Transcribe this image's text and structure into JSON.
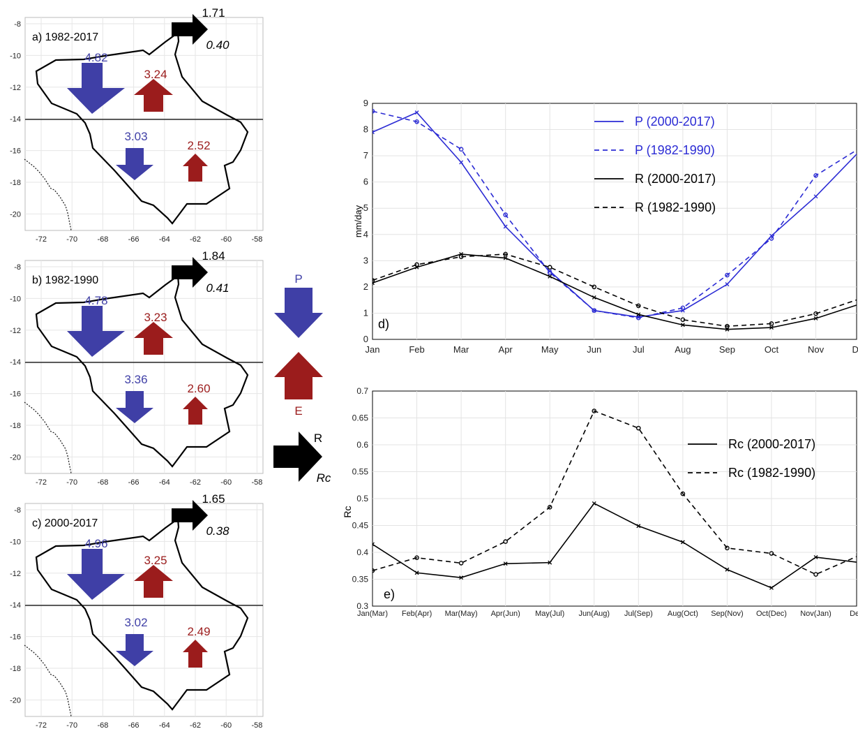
{
  "colors": {
    "p": "#3f3fa6",
    "e": "#9b1c1c",
    "r": "#000000",
    "p_line": "#2b2bd4",
    "r_line": "#000000",
    "grid": "#e3e3e3",
    "basin": "#000000"
  },
  "map_panels": [
    {
      "label": "a) 1982-2017",
      "r": "1.71",
      "rc": "0.40",
      "p_north": "4.82",
      "e_north": "3.24",
      "p_south": "3.03",
      "e_south": "2.52"
    },
    {
      "label": "b) 1982-1990",
      "r": "1.84",
      "rc": "0.41",
      "p_north": "4.78",
      "e_north": "3.23",
      "p_south": "3.36",
      "e_south": "2.60"
    },
    {
      "label": "c) 2000-2017",
      "r": "1.65",
      "rc": "0.38",
      "p_north": "4.96",
      "e_north": "3.25",
      "p_south": "3.02",
      "e_south": "2.49"
    }
  ],
  "map_axes": {
    "x_ticks": [
      "-72",
      "-70",
      "-68",
      "-66",
      "-64",
      "-62",
      "-60",
      "-58"
    ],
    "y_ticks": [
      "-8",
      "-10",
      "-12",
      "-14",
      "-16",
      "-18",
      "-20"
    ]
  },
  "legend_arrows": {
    "p": "P",
    "e": "E",
    "r": "R",
    "rc": "Rc"
  },
  "chart_data": [
    {
      "type": "line",
      "panel_label": "d)",
      "ylabel": "mm/day",
      "xlabel": "",
      "categories": [
        "Jan",
        "Feb",
        "Mar",
        "Apr",
        "May",
        "Jun",
        "Jul",
        "Aug",
        "Sep",
        "Oct",
        "Nov",
        "Dec"
      ],
      "y_ticks": [
        "0",
        "1",
        "2",
        "3",
        "4",
        "5",
        "6",
        "7",
        "8",
        "9"
      ],
      "ylim": [
        0,
        9
      ],
      "grid": true,
      "legend_position": "top-center",
      "series": [
        {
          "name": "P (2000-2017)",
          "color": "#2b2bd4",
          "dash": "solid",
          "marker": "x",
          "values": [
            7.9,
            8.65,
            6.75,
            4.3,
            2.6,
            1.1,
            0.85,
            1.1,
            2.1,
            3.95,
            5.45,
            7.2
          ]
        },
        {
          "name": "P (1982-1990)",
          "color": "#2b2bd4",
          "dash": "dashed",
          "marker": "o",
          "values": [
            8.7,
            8.3,
            7.25,
            4.75,
            2.55,
            1.1,
            0.82,
            1.2,
            2.45,
            3.85,
            6.25,
            7.3
          ]
        },
        {
          "name": "R (2000-2017)",
          "color": "#000000",
          "dash": "solid",
          "marker": "x",
          "values": [
            2.15,
            2.75,
            3.25,
            3.1,
            2.4,
            1.6,
            0.95,
            0.55,
            0.38,
            0.45,
            0.8,
            1.35
          ]
        },
        {
          "name": "R (1982-1990)",
          "color": "#000000",
          "dash": "dashed",
          "marker": "o",
          "values": [
            2.25,
            2.85,
            3.15,
            3.25,
            2.75,
            2.0,
            1.28,
            0.75,
            0.5,
            0.6,
            0.98,
            1.55
          ]
        }
      ]
    },
    {
      "type": "line",
      "panel_label": "e)",
      "ylabel": "Rc",
      "xlabel": "",
      "categories": [
        "Jan(Mar)",
        "Feb(Apr)",
        "Mar(May)",
        "Apr(Jun)",
        "May(Jul)",
        "Jun(Aug)",
        "Jul(Sep)",
        "Aug(Oct)",
        "Sep(Nov)",
        "Oct(Dec)",
        "Nov(Jan)",
        "Dec(F"
      ],
      "y_ticks": [
        "0.3",
        "0.35",
        "0.4",
        "0.45",
        "0.5",
        "0.55",
        "0.6",
        "0.65",
        "0.7"
      ],
      "ylim": [
        0.3,
        0.7
      ],
      "grid": true,
      "legend_position": "top-right",
      "series": [
        {
          "name": "Rc (2000-2017)",
          "color": "#000000",
          "dash": "solid",
          "marker": "x",
          "values": [
            0.415,
            0.362,
            0.353,
            0.379,
            0.381,
            0.491,
            0.449,
            0.419,
            0.368,
            0.334,
            0.391,
            0.381
          ]
        },
        {
          "name": "Rc (1982-1990)",
          "color": "#000000",
          "dash": "dashed",
          "marker": "o",
          "values": [
            0.366,
            0.39,
            0.38,
            0.42,
            0.484,
            0.663,
            0.631,
            0.509,
            0.408,
            0.398,
            0.359,
            0.395
          ]
        }
      ]
    }
  ]
}
